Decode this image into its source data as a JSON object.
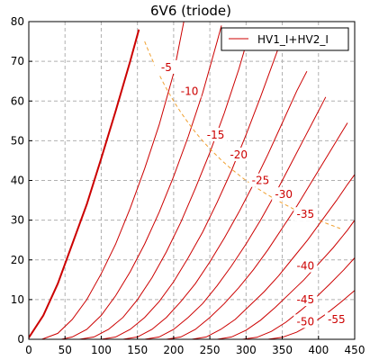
{
  "chart_data": {
    "type": "line",
    "title": "6V6  (triode)",
    "xlabel": "",
    "ylabel": "",
    "xlim": [
      0,
      450
    ],
    "ylim": [
      0,
      80
    ],
    "x_ticks": [
      "0",
      "50",
      "100",
      "150",
      "200",
      "250",
      "300",
      "350",
      "400",
      "450"
    ],
    "y_ticks": [
      "0",
      "10",
      "20",
      "30",
      "40",
      "50",
      "60",
      "70",
      "80"
    ],
    "grid": true,
    "legend": {
      "entries": [
        "HV1_I+HV2_I"
      ],
      "placement": "top-right"
    },
    "colors": {
      "curves": "#cc0000",
      "dissipation": "#f0a030",
      "grid": "#b0b0b0"
    },
    "series": [
      {
        "label": "",
        "points": [
          [
            0,
            0.4
          ],
          [
            20,
            6
          ],
          [
            40,
            14
          ],
          [
            60,
            24
          ],
          [
            80,
            34
          ],
          [
            100,
            45.5
          ],
          [
            120,
            57.5
          ],
          [
            140,
            70
          ],
          [
            152,
            78
          ]
        ]
      },
      {
        "label": "-5",
        "points": [
          [
            18,
            0
          ],
          [
            40,
            1.5
          ],
          [
            60,
            5
          ],
          [
            80,
            10
          ],
          [
            100,
            16.5
          ],
          [
            120,
            24
          ],
          [
            140,
            33
          ],
          [
            160,
            43
          ],
          [
            180,
            54
          ],
          [
            200,
            67
          ],
          [
            214,
            80
          ]
        ]
      },
      {
        "label": "-10",
        "points": [
          [
            45,
            0
          ],
          [
            60,
            0.6
          ],
          [
            80,
            2.5
          ],
          [
            100,
            6
          ],
          [
            120,
            11
          ],
          [
            140,
            17
          ],
          [
            160,
            24
          ],
          [
            180,
            32
          ],
          [
            200,
            41
          ],
          [
            220,
            51
          ],
          [
            240,
            62
          ],
          [
            260,
            75
          ],
          [
            266,
            79
          ]
        ]
      },
      {
        "label": "-15",
        "points": [
          [
            70,
            0
          ],
          [
            90,
            0.6
          ],
          [
            110,
            2.5
          ],
          [
            130,
            5.5
          ],
          [
            150,
            10
          ],
          [
            170,
            15.5
          ],
          [
            190,
            22
          ],
          [
            210,
            29.5
          ],
          [
            230,
            38
          ],
          [
            250,
            47
          ],
          [
            270,
            57
          ],
          [
            290,
            68
          ],
          [
            306,
            78
          ]
        ]
      },
      {
        "label": "-20",
        "points": [
          [
            100,
            0
          ],
          [
            120,
            0.6
          ],
          [
            140,
            2.5
          ],
          [
            160,
            5.5
          ],
          [
            180,
            9.5
          ],
          [
            200,
            14.5
          ],
          [
            220,
            20.5
          ],
          [
            240,
            27
          ],
          [
            260,
            34.5
          ],
          [
            280,
            42.5
          ],
          [
            300,
            51.5
          ],
          [
            320,
            61
          ],
          [
            340,
            71
          ],
          [
            348,
            75
          ]
        ]
      },
      {
        "label": "-25",
        "points": [
          [
            130,
            0
          ],
          [
            150,
            0.6
          ],
          [
            170,
            2.5
          ],
          [
            190,
            5.5
          ],
          [
            210,
            9.5
          ],
          [
            230,
            14
          ],
          [
            250,
            19.5
          ],
          [
            270,
            25.5
          ],
          [
            290,
            32
          ],
          [
            310,
            39
          ],
          [
            330,
            46.5
          ],
          [
            350,
            54.5
          ],
          [
            370,
            62.5
          ],
          [
            384,
            67.5
          ]
        ]
      },
      {
        "label": "-30",
        "points": [
          [
            160,
            0
          ],
          [
            180,
            0.6
          ],
          [
            200,
            2.5
          ],
          [
            220,
            5.5
          ],
          [
            240,
            9
          ],
          [
            260,
            13.5
          ],
          [
            280,
            18.5
          ],
          [
            300,
            24
          ],
          [
            320,
            30
          ],
          [
            340,
            36.5
          ],
          [
            360,
            43.5
          ],
          [
            380,
            50.5
          ],
          [
            400,
            57.5
          ],
          [
            410,
            61
          ]
        ]
      },
      {
        "label": "-35",
        "points": [
          [
            190,
            0
          ],
          [
            210,
            0.6
          ],
          [
            230,
            2.5
          ],
          [
            250,
            5.5
          ],
          [
            270,
            9
          ],
          [
            290,
            13
          ],
          [
            310,
            17.5
          ],
          [
            330,
            22.5
          ],
          [
            350,
            28
          ],
          [
            370,
            33.5
          ],
          [
            390,
            39.5
          ],
          [
            410,
            45.5
          ],
          [
            430,
            51.5
          ],
          [
            440,
            54.5
          ]
        ]
      },
      {
        "label": "-40",
        "points": [
          [
            225,
            0
          ],
          [
            245,
            0.6
          ],
          [
            265,
            2.5
          ],
          [
            285,
            5
          ],
          [
            305,
            8.5
          ],
          [
            325,
            12
          ],
          [
            345,
            16
          ],
          [
            365,
            20.5
          ],
          [
            385,
            25
          ],
          [
            405,
            30
          ],
          [
            425,
            35
          ],
          [
            440,
            39
          ],
          [
            450,
            41.5
          ]
        ]
      },
      {
        "label": "-45",
        "points": [
          [
            260,
            0
          ],
          [
            280,
            0.6
          ],
          [
            300,
            2.3
          ],
          [
            320,
            4.8
          ],
          [
            340,
            8
          ],
          [
            360,
            11.5
          ],
          [
            380,
            15
          ],
          [
            400,
            19
          ],
          [
            420,
            23
          ],
          [
            440,
            27.5
          ],
          [
            450,
            30
          ]
        ]
      },
      {
        "label": "-50",
        "points": [
          [
            295,
            0
          ],
          [
            315,
            0.5
          ],
          [
            335,
            2
          ],
          [
            355,
            4.3
          ],
          [
            375,
            7.2
          ],
          [
            395,
            10.3
          ],
          [
            415,
            13.8
          ],
          [
            435,
            17.5
          ],
          [
            450,
            20.5
          ]
        ]
      },
      {
        "label": "-55",
        "points": [
          [
            330,
            0
          ],
          [
            350,
            0.5
          ],
          [
            370,
            1.8
          ],
          [
            390,
            3.8
          ],
          [
            410,
            6.3
          ],
          [
            430,
            9.2
          ],
          [
            450,
            12.3
          ]
        ]
      }
    ],
    "label_positions": {
      "-5": [
        190,
        68
      ],
      "-10": [
        222,
        62
      ],
      "-15": [
        258,
        51
      ],
      "-20": [
        290,
        46
      ],
      "-25": [
        320,
        39.5
      ],
      "-30": [
        352,
        36
      ],
      "-35": [
        382,
        31
      ],
      "-40": [
        382,
        18
      ],
      "-45": [
        382,
        9.5
      ],
      "-50": [
        382,
        4
      ],
      "-55": [
        425,
        4.5
      ]
    },
    "dissipation_curve": {
      "power": 12,
      "x_range": [
        160,
        430
      ]
    }
  }
}
